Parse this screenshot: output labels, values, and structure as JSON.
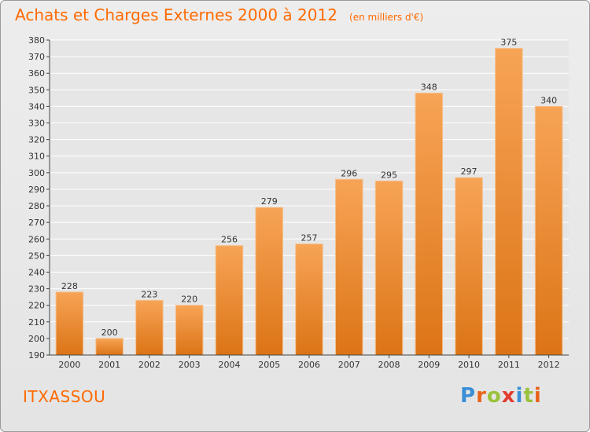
{
  "header": {
    "title": "Achats et Charges Externes 2000 à 2012",
    "subtitle": "(en milliers d'€)"
  },
  "footer": {
    "commune": "ITXASSOU",
    "logo": "Proxiti",
    "logo_letters": [
      {
        "ch": "P",
        "color": "#3a8fd6"
      },
      {
        "ch": "r",
        "color": "#e8641b"
      },
      {
        "ch": "o",
        "color": "#9ac23c"
      },
      {
        "ch": "x",
        "color": "#e33b2e"
      },
      {
        "ch": "i",
        "color": "#3a8fd6"
      },
      {
        "ch": "t",
        "color": "#9ac23c"
      },
      {
        "ch": "i",
        "color": "#e8641b"
      }
    ]
  },
  "colors": {
    "accent": "#ff6a00",
    "bar_light": "#f7a456",
    "bar_dark": "#dc7416",
    "axis": "#444444"
  },
  "chart_data": {
    "type": "bar",
    "categories": [
      "2000",
      "2001",
      "2002",
      "2003",
      "2004",
      "2005",
      "2006",
      "2007",
      "2008",
      "2009",
      "2010",
      "2011",
      "2012"
    ],
    "values": [
      228,
      200,
      223,
      220,
      256,
      279,
      257,
      296,
      295,
      348,
      297,
      375,
      340
    ],
    "title": "Achats et Charges Externes 2000 à 2012",
    "ylim": [
      190,
      380
    ],
    "yticks": [
      190,
      200,
      210,
      220,
      230,
      240,
      250,
      260,
      270,
      280,
      290,
      300,
      310,
      320,
      330,
      340,
      350,
      360,
      370,
      380
    ],
    "grid": true,
    "data_labels": true
  }
}
